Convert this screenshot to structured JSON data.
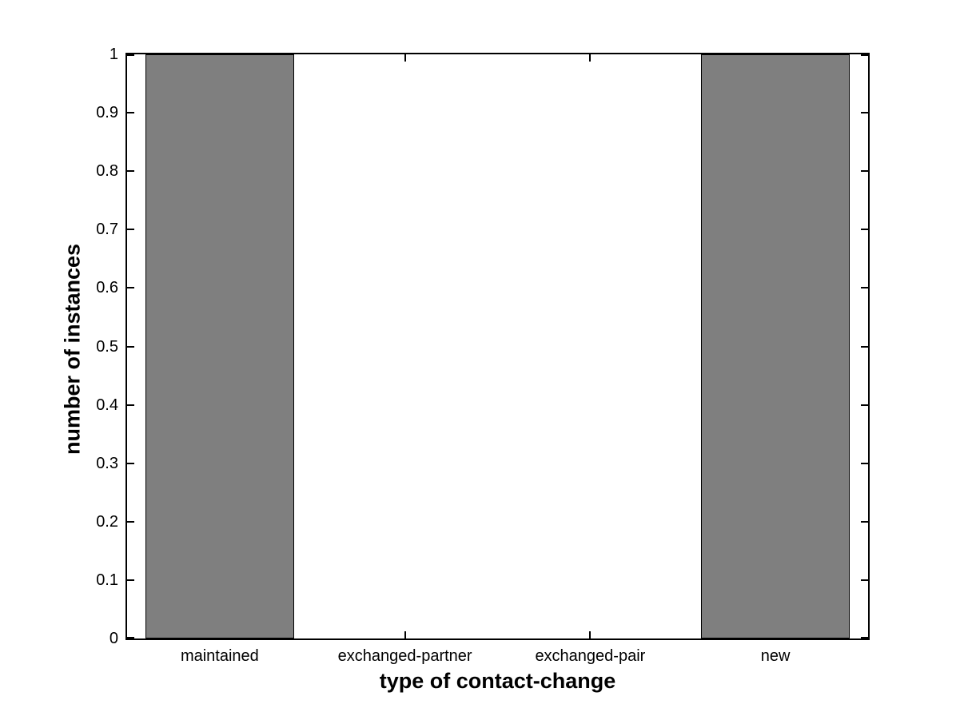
{
  "figure": {
    "background_color": "#ffffff"
  },
  "chart_data": {
    "type": "bar",
    "title": "",
    "xlabel": "type of contact-change",
    "ylabel": "number of instances",
    "categories": [
      "maintained",
      "exchanged-partner",
      "exchanged-pair",
      "new"
    ],
    "values": [
      1,
      0,
      0,
      1
    ],
    "ylim": [
      0,
      1
    ],
    "ytick_values": [
      0,
      0.1,
      0.2,
      0.3,
      0.4,
      0.5,
      0.6,
      0.7,
      0.8,
      0.9,
      1
    ],
    "ytick_labels": [
      "0",
      "0.1",
      "0.2",
      "0.3",
      "0.4",
      "0.5",
      "0.6",
      "0.7",
      "0.8",
      "0.9",
      "1"
    ],
    "bar_width_fraction": 0.8,
    "bar_fill_color": "#7f7f7f",
    "bar_edge_color": "#000000",
    "axis_color": "#000000",
    "grid": false,
    "legend": false,
    "box": true,
    "tick_direction": "in"
  }
}
